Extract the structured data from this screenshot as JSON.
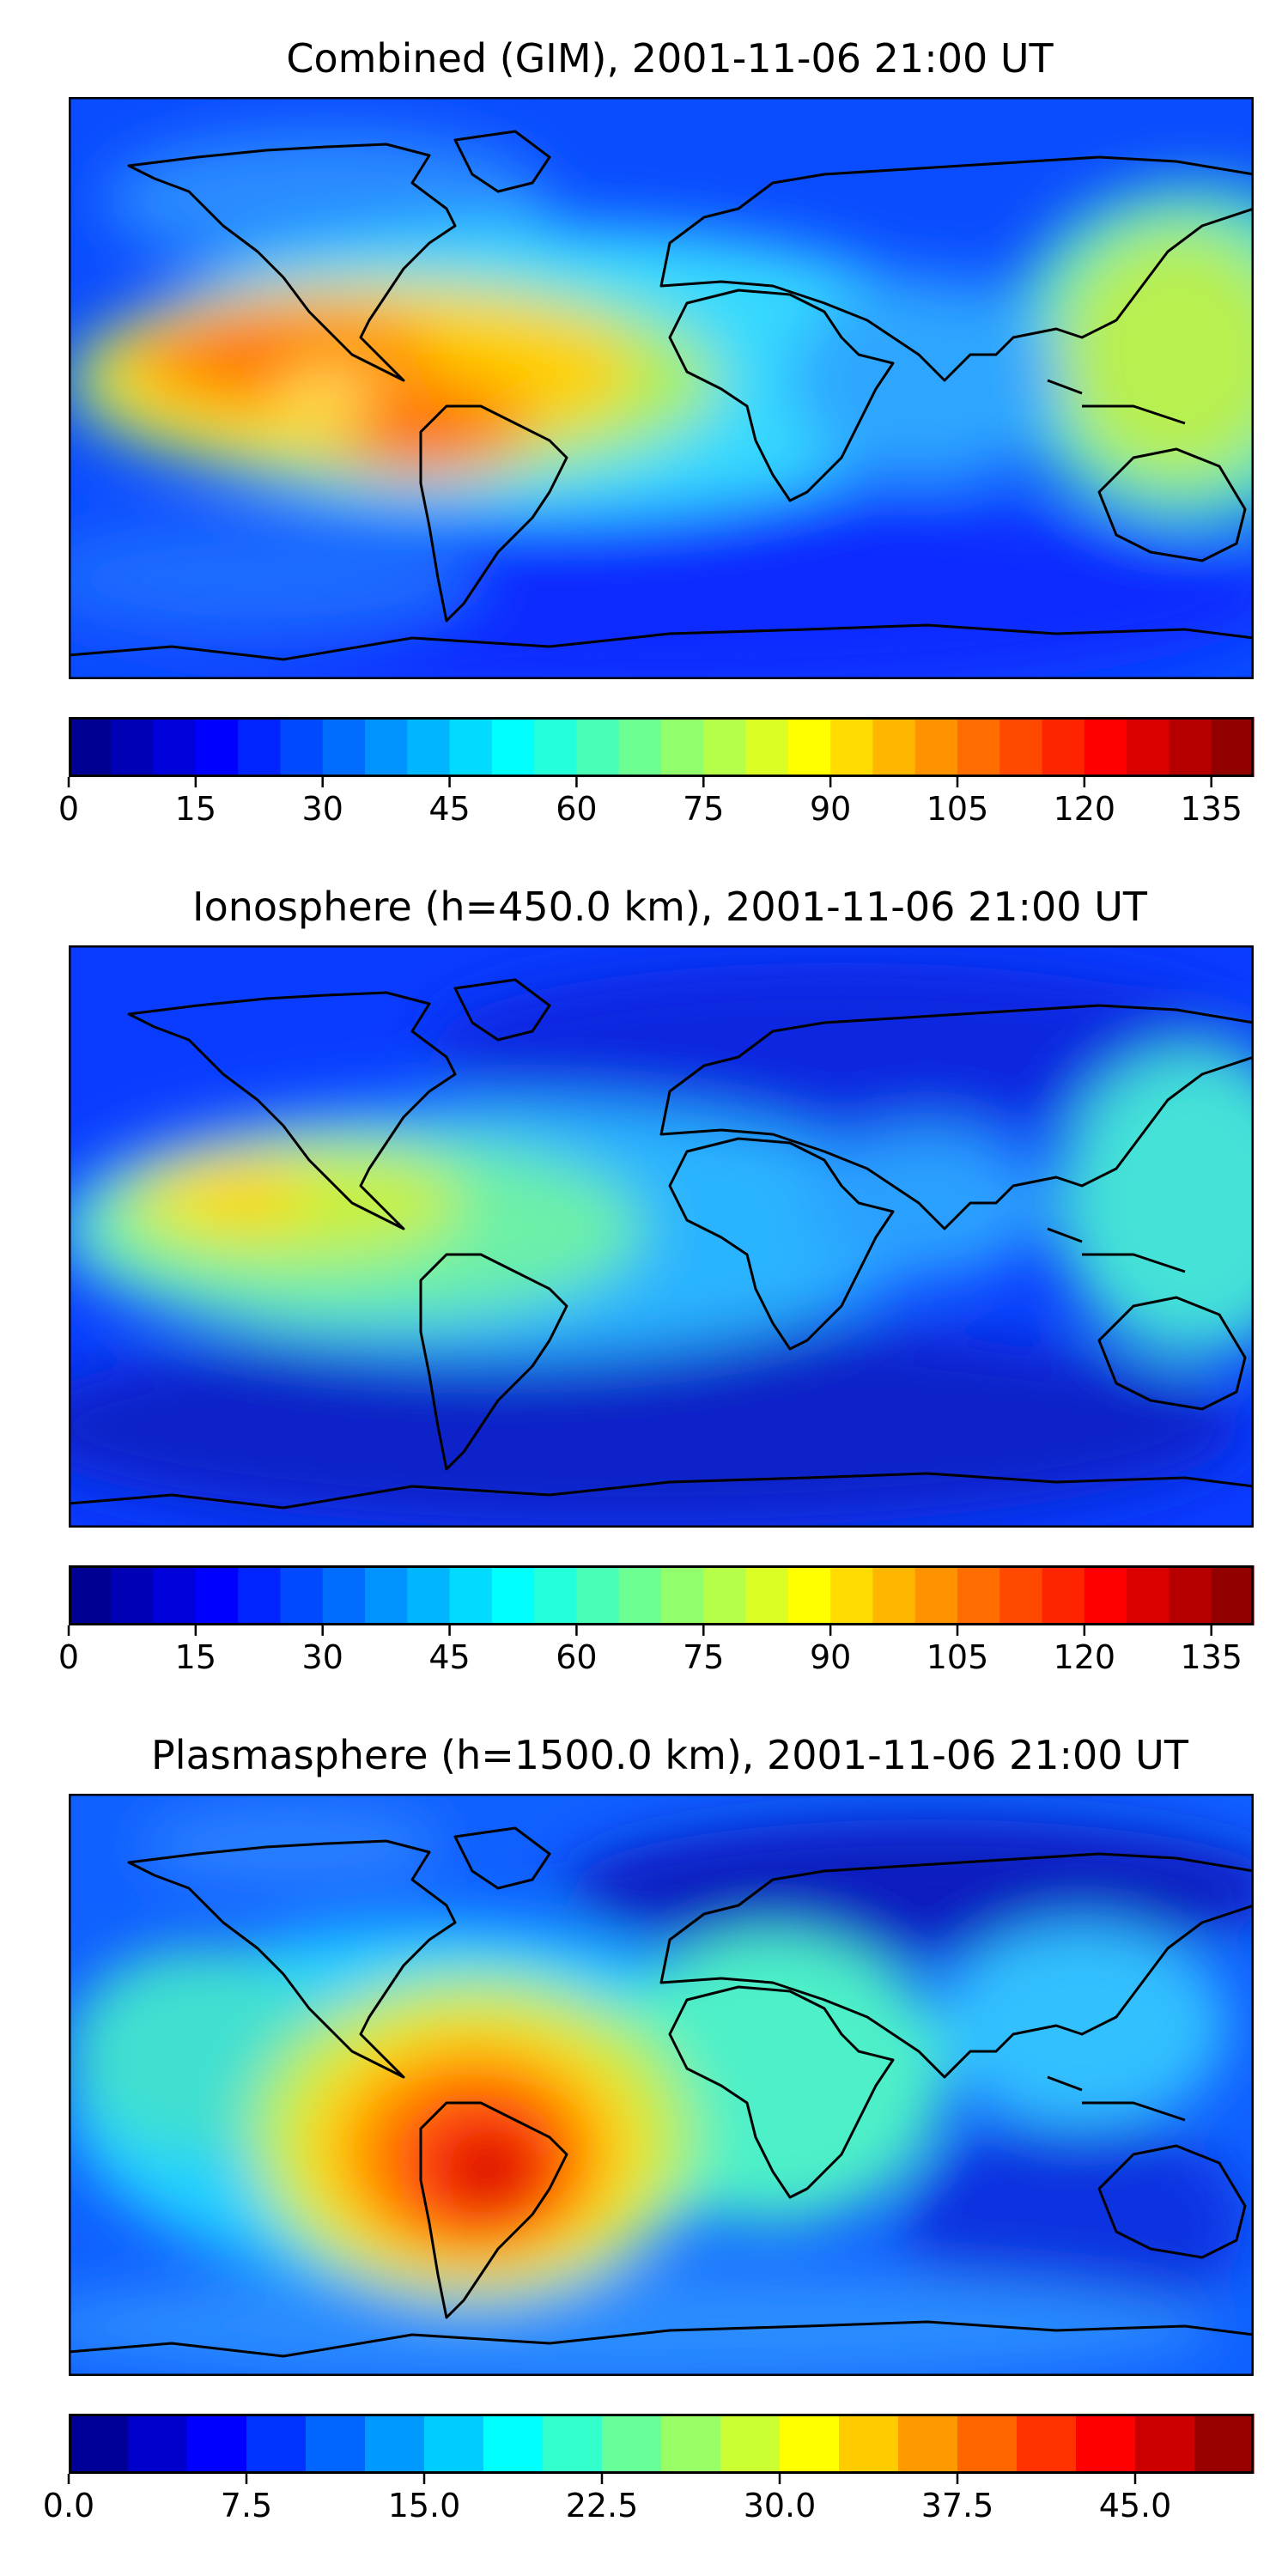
{
  "chart_data": [
    {
      "type": "heatmap",
      "title": "Combined (GIM), 2001-11-06 21:00 UT",
      "map": "world (plate carree) with coastlines",
      "colormap": "jet",
      "colorbar": {
        "vmin": 0,
        "vmax": 140,
        "levels": 28,
        "ticks": [
          "0",
          "15",
          "30",
          "45",
          "60",
          "75",
          "90",
          "105",
          "120",
          "135"
        ]
      },
      "features": [
        {
          "lon": -155,
          "lat": 0,
          "value": 108
        },
        {
          "lon": -130,
          "lat": 0,
          "value": 112
        },
        {
          "lon": -110,
          "lat": -10,
          "value": 85
        },
        {
          "lon": -85,
          "lat": -15,
          "value": 112
        },
        {
          "lon": -65,
          "lat": -5,
          "value": 100
        },
        {
          "lon": -100,
          "lat": 30,
          "value": 38
        },
        {
          "lon": 0,
          "lat": 0,
          "value": 55
        },
        {
          "lon": 180,
          "lat": 0,
          "value": 90
        },
        {
          "lon": 140,
          "lat": -25,
          "value": 45
        }
      ]
    },
    {
      "type": "heatmap",
      "title": "Ionosphere  (h=450.0 km), 2001-11-06 21:00 UT",
      "map": "world (plate carree) with coastlines",
      "colormap": "jet",
      "colorbar": {
        "vmin": 0,
        "vmax": 140,
        "levels": 28,
        "ticks": [
          "0",
          "15",
          "30",
          "45",
          "60",
          "75",
          "90",
          "105",
          "120",
          "135"
        ]
      },
      "features": [
        {
          "lon": -130,
          "lat": 5,
          "value": 92
        },
        {
          "lon": -150,
          "lat": 5,
          "value": 80
        },
        {
          "lon": -100,
          "lat": 0,
          "value": 72
        },
        {
          "lon": -70,
          "lat": -10,
          "value": 70
        },
        {
          "lon": 0,
          "lat": 5,
          "value": 48
        },
        {
          "lon": 180,
          "lat": 5,
          "value": 58
        },
        {
          "lon": 20,
          "lat": -35,
          "value": 28
        },
        {
          "lon": 60,
          "lat": 40,
          "value": 18
        }
      ]
    },
    {
      "type": "heatmap",
      "title": "Plasmasphere (h=1500.0 km), 2001-11-06 21:00 UT",
      "map": "world (plate carree) with coastlines",
      "colormap": "jet",
      "colorbar": {
        "vmin": 0.0,
        "vmax": 50.0,
        "levels": 20,
        "ticks": [
          "0.0",
          "7.5",
          "15.0",
          "22.5",
          "30.0",
          "37.5",
          "45.0"
        ]
      },
      "features": [
        {
          "lon": -70,
          "lat": -25,
          "value": 46
        },
        {
          "lon": -60,
          "lat": -15,
          "value": 40
        },
        {
          "lon": -100,
          "lat": -5,
          "value": 30
        },
        {
          "lon": -150,
          "lat": 5,
          "value": 22
        },
        {
          "lon": 10,
          "lat": 5,
          "value": 21
        },
        {
          "lon": 120,
          "lat": 10,
          "value": 18
        },
        {
          "lon": 60,
          "lat": 50,
          "value": 4
        },
        {
          "lon": 120,
          "lat": -35,
          "value": 7
        }
      ]
    }
  ]
}
